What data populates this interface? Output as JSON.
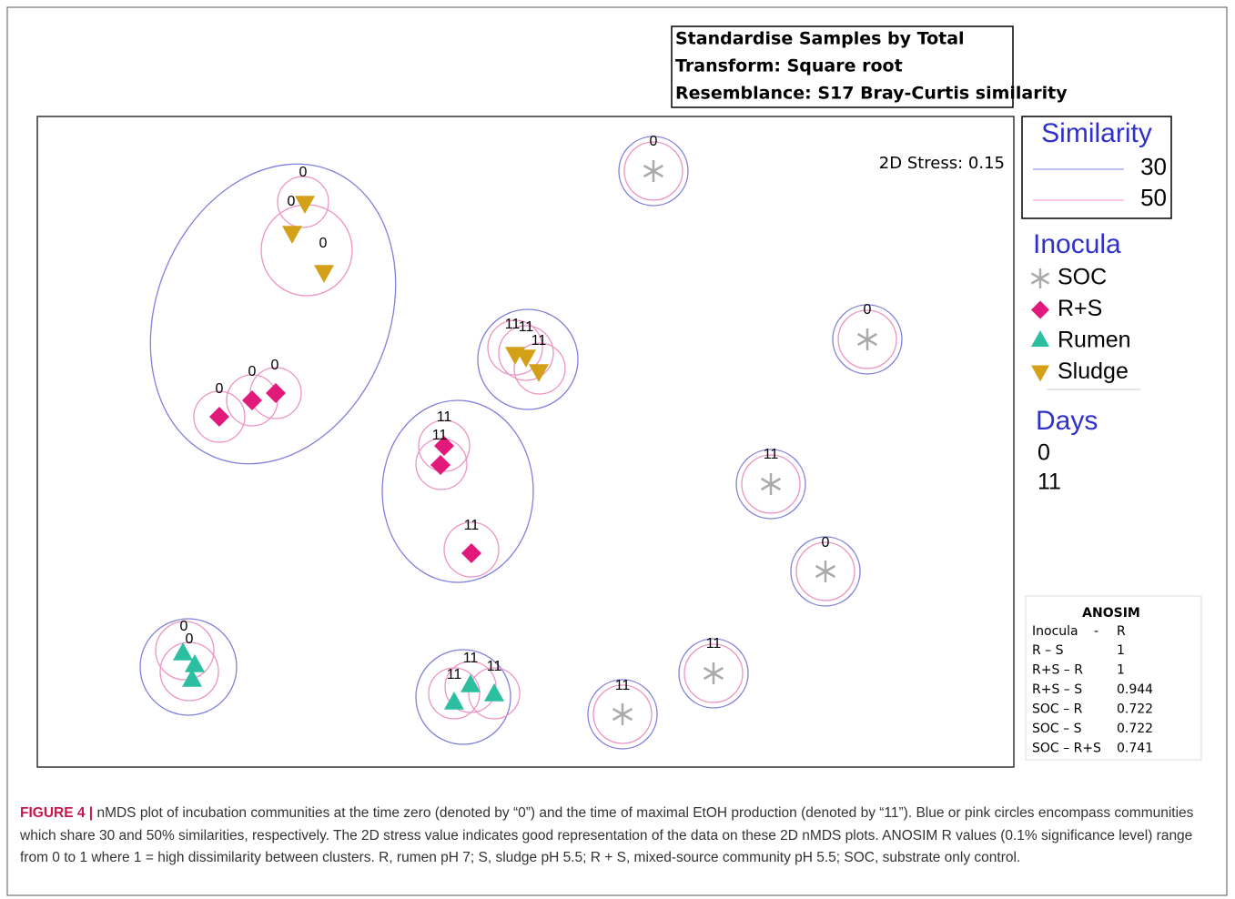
{
  "settings_box": [
    "Standardise Samples by Total",
    "Transform: Square root",
    "Resemblance: S17 Bray-Curtis similarity"
  ],
  "stress": "2D Stress: 0.15",
  "legend": {
    "similarity_title": "Similarity",
    "similarity_items": [
      "30",
      "50"
    ],
    "inocula_title": "Inocula",
    "inocula_items": [
      "SOC",
      "R+S",
      "Rumen",
      "Sludge"
    ],
    "days_title": "Days",
    "days_items": [
      "0",
      "11"
    ]
  },
  "point_labels": [
    "0",
    "0",
    "0",
    "0",
    "0",
    "0",
    "11",
    "11",
    "11",
    "11",
    "11",
    "11",
    "0",
    "0",
    "11",
    "11",
    "11",
    "0",
    "0",
    "11",
    "0",
    "11",
    "11"
  ],
  "anosim": {
    "title": "ANOSIM",
    "header": [
      "Inocula",
      "-",
      "R"
    ],
    "rows": [
      [
        "R – S",
        "1"
      ],
      [
        "R+S – R",
        "1"
      ],
      [
        "R+S – S",
        "0.944"
      ],
      [
        "SOC – R",
        "0.722"
      ],
      [
        "SOC – S",
        "0.722"
      ],
      [
        "SOC – R+S",
        "0.741"
      ]
    ]
  },
  "caption": {
    "label": "FIGURE 4 |",
    "text": "nMDS plot of incubation communities at the time zero (denoted by “0”) and the time of maximal EtOH production (denoted by “11”). Blue or pink circles encompass communities which share 30 and 50% similarities, respectively. The 2D stress value indicates good representation of the data on these 2D nMDS plots. ANOSIM R values (0.1% significance level) range from 0 to 1 where 1 = high dissimilarity between clusters. R, rumen pH 7; S, sludge pH 5.5; R + S, mixed-source community pH 5.5; SOC, substrate only control."
  }
}
